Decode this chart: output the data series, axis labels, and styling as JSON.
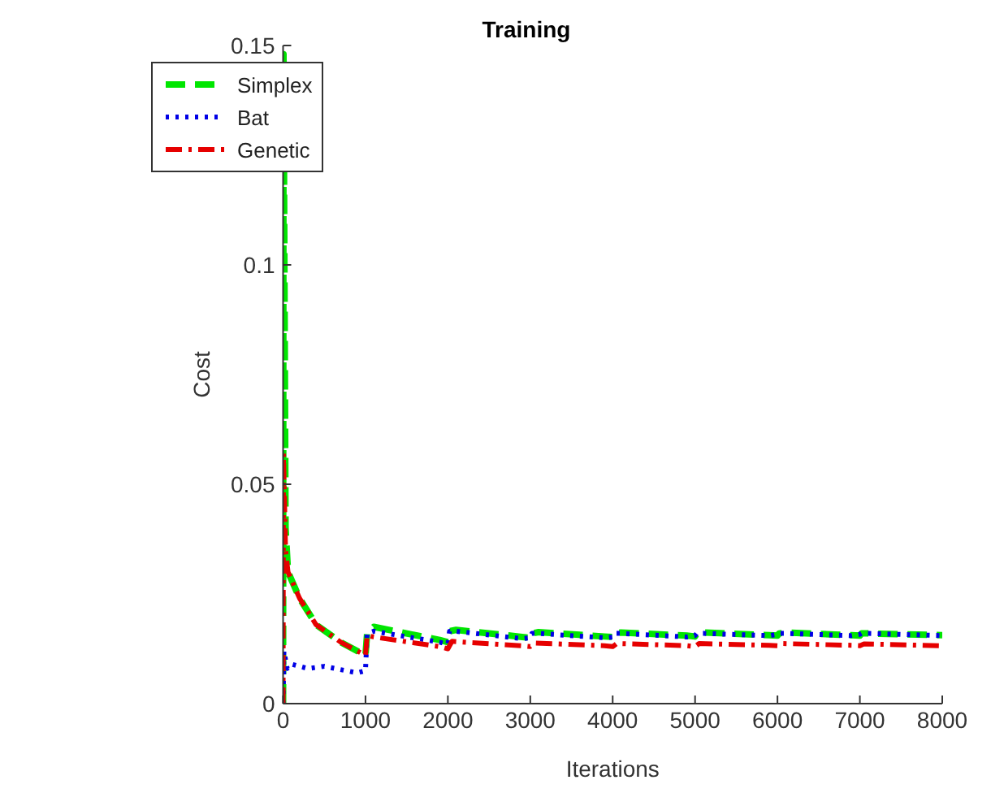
{
  "chart_data": {
    "type": "line",
    "title": "Training",
    "xlabel": "Iterations",
    "ylabel": "Cost",
    "xlim": [
      0,
      8000
    ],
    "ylim": [
      0,
      0.15
    ],
    "xticks": [
      0,
      1000,
      2000,
      3000,
      4000,
      5000,
      6000,
      7000,
      8000
    ],
    "yticks": [
      0,
      0.05,
      0.1,
      0.15
    ],
    "grid": false,
    "legend": "top left",
    "marker": "none",
    "series": [
      {
        "name": "Simplex",
        "color": "#00e600",
        "line_style": "dashed",
        "x": [
          0,
          5,
          30,
          60,
          200,
          400,
          700,
          1000,
          1020,
          1100,
          1900,
          2000,
          2020,
          2100,
          2900,
          3000,
          3020,
          3100,
          3900,
          4000,
          4020,
          4100,
          4900,
          5000,
          5020,
          5100,
          5900,
          6000,
          6020,
          6100,
          6900,
          7000,
          7020,
          7100,
          8000
        ],
        "values": [
          0,
          0.148,
          0.04,
          0.03,
          0.024,
          0.018,
          0.014,
          0.011,
          0.016,
          0.0175,
          0.0145,
          0.014,
          0.0165,
          0.0168,
          0.0152,
          0.015,
          0.016,
          0.0163,
          0.0153,
          0.0152,
          0.016,
          0.0162,
          0.0155,
          0.0153,
          0.016,
          0.0162,
          0.0156,
          0.0155,
          0.016,
          0.0162,
          0.0156,
          0.0155,
          0.016,
          0.016,
          0.0156
        ]
      },
      {
        "name": "Bat",
        "color": "#0000e6",
        "line_style": "dotted",
        "x": [
          0,
          10,
          50,
          100,
          300,
          500,
          900,
          1000,
          1020,
          1100,
          1900,
          2000,
          2020,
          2100,
          2900,
          3000,
          3020,
          3100,
          3900,
          4000,
          4020,
          4100,
          4900,
          5000,
          5020,
          5100,
          5900,
          6000,
          6020,
          6100,
          6900,
          7000,
          7020,
          7100,
          8000
        ],
        "values": [
          0,
          0.012,
          0.008,
          0.009,
          0.008,
          0.0085,
          0.007,
          0.0075,
          0.016,
          0.0165,
          0.014,
          0.0135,
          0.0165,
          0.0165,
          0.0148,
          0.015,
          0.016,
          0.016,
          0.015,
          0.0152,
          0.016,
          0.016,
          0.0152,
          0.0155,
          0.016,
          0.016,
          0.0155,
          0.0158,
          0.016,
          0.016,
          0.0155,
          0.0158,
          0.016,
          0.016,
          0.0155
        ]
      },
      {
        "name": "Genetic",
        "color": "#e60000",
        "line_style": "dashdot",
        "x": [
          0,
          5,
          30,
          60,
          200,
          400,
          700,
          1000,
          1020,
          1100,
          1900,
          2000,
          2050,
          2900,
          3000,
          3050,
          3900,
          4000,
          4050,
          4900,
          5000,
          5050,
          5900,
          6000,
          6050,
          6900,
          7000,
          7050,
          8000
        ],
        "values": [
          0,
          0.057,
          0.035,
          0.03,
          0.024,
          0.018,
          0.014,
          0.011,
          0.0155,
          0.0152,
          0.013,
          0.0125,
          0.0142,
          0.0132,
          0.013,
          0.0138,
          0.0132,
          0.013,
          0.0137,
          0.0132,
          0.013,
          0.0137,
          0.0133,
          0.0132,
          0.0137,
          0.0133,
          0.0132,
          0.0136,
          0.0132
        ]
      }
    ]
  }
}
